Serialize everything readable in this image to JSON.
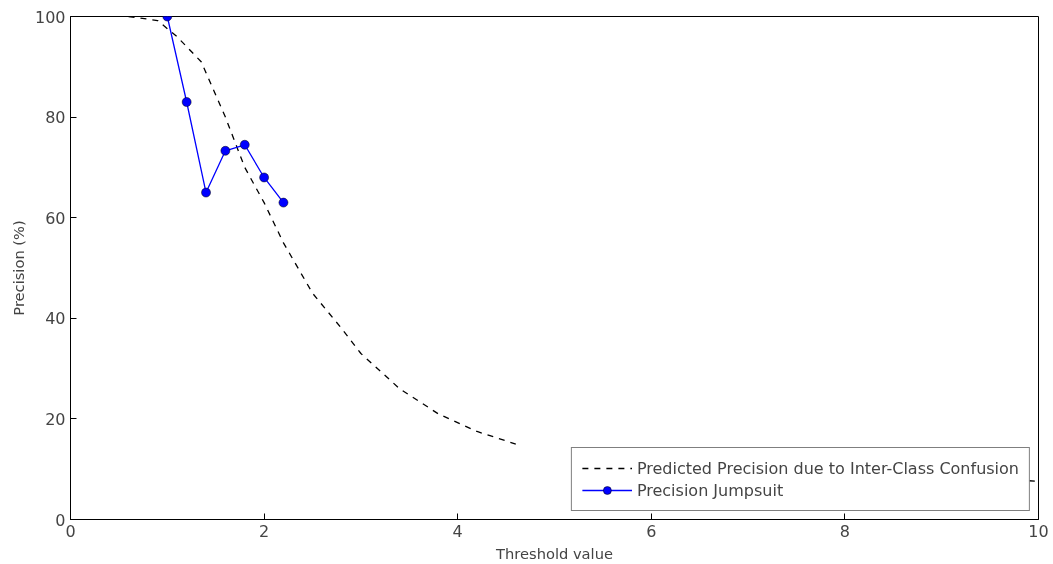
{
  "chart_data": {
    "type": "line",
    "xlabel": "Threshold value",
    "ylabel": "Precision (%)",
    "xlim": [
      0,
      10
    ],
    "ylim": [
      0,
      100
    ],
    "xticks": [
      0,
      2,
      4,
      6,
      8,
      10
    ],
    "yticks": [
      0,
      20,
      40,
      60,
      80,
      100
    ],
    "grid": false,
    "legend": "bottom right",
    "series": [
      {
        "name": "Predicted Precision due to Inter-Class Confusion",
        "color": "#000000",
        "line_style": "dashed",
        "marker": "none",
        "x": [
          0.6,
          0.9,
          1.1,
          1.35,
          1.6,
          1.8,
          2.0,
          2.2,
          2.5,
          2.8,
          3.0,
          3.4,
          3.8,
          4.2,
          4.6,
          7.0,
          9.9,
          10.0
        ],
        "values": [
          100,
          99.2,
          96,
          91,
          80,
          70,
          63,
          55,
          45,
          38,
          33,
          26,
          21,
          17.5,
          15,
          null,
          7.7,
          7.6
        ]
      },
      {
        "name": "Precision Jumpsuit",
        "color": "#0000ff",
        "line_style": "solid",
        "marker": "circle",
        "x": [
          1.0,
          1.2,
          1.4,
          1.6,
          1.8,
          2.0,
          2.2
        ],
        "values": [
          100,
          83,
          65,
          73.3,
          74.5,
          68,
          63
        ]
      }
    ]
  }
}
